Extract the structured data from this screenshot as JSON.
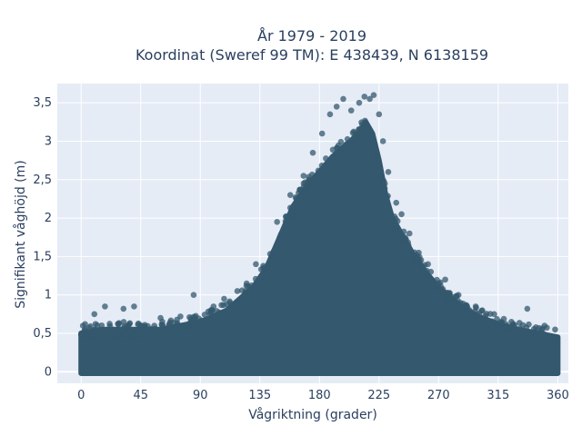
{
  "chart_data": {
    "type": "scatter",
    "title_line1": "År 1979 - 2019",
    "title_line2": "Koordinat (Sweref 99 TM): E 438439, N 6138159",
    "xlabel": "Vågriktning (grader)",
    "ylabel": "Signifikant våghöjd (m)",
    "xlim": [
      -18,
      368
    ],
    "ylim": [
      -0.15,
      3.75
    ],
    "grid": true,
    "legend": "none",
    "marker_color": "#34586e",
    "plot_bg": "#e5ecf6",
    "x_ticks": [
      {
        "value": 0,
        "label": "0"
      },
      {
        "value": 45,
        "label": "45"
      },
      {
        "value": 90,
        "label": "90"
      },
      {
        "value": 135,
        "label": "135"
      },
      {
        "value": 180,
        "label": "180"
      },
      {
        "value": 225,
        "label": "225"
      },
      {
        "value": 270,
        "label": "270"
      },
      {
        "value": 315,
        "label": "315"
      },
      {
        "value": 360,
        "label": "360"
      }
    ],
    "y_ticks": [
      {
        "value": 0,
        "label": "0"
      },
      {
        "value": 0.5,
        "label": "0,5"
      },
      {
        "value": 1,
        "label": "1"
      },
      {
        "value": 1.5,
        "label": "1,5"
      },
      {
        "value": 2,
        "label": "2"
      },
      {
        "value": 2.5,
        "label": "2,5"
      },
      {
        "value": 3,
        "label": "3"
      },
      {
        "value": 3.5,
        "label": "3,5"
      }
    ],
    "envelope": [
      [
        0,
        0.5
      ],
      [
        15,
        0.55
      ],
      [
        30,
        0.55
      ],
      [
        45,
        0.55
      ],
      [
        60,
        0.55
      ],
      [
        75,
        0.6
      ],
      [
        90,
        0.65
      ],
      [
        100,
        0.72
      ],
      [
        110,
        0.8
      ],
      [
        120,
        0.95
      ],
      [
        130,
        1.1
      ],
      [
        140,
        1.35
      ],
      [
        150,
        1.75
      ],
      [
        160,
        2.15
      ],
      [
        170,
        2.4
      ],
      [
        180,
        2.6
      ],
      [
        190,
        2.8
      ],
      [
        200,
        2.95
      ],
      [
        210,
        3.1
      ],
      [
        215,
        3.25
      ],
      [
        220,
        3.1
      ],
      [
        225,
        2.75
      ],
      [
        230,
        2.3
      ],
      [
        235,
        2.0
      ],
      [
        240,
        1.85
      ],
      [
        250,
        1.55
      ],
      [
        260,
        1.3
      ],
      [
        270,
        1.1
      ],
      [
        280,
        0.95
      ],
      [
        290,
        0.82
      ],
      [
        300,
        0.72
      ],
      [
        315,
        0.62
      ],
      [
        330,
        0.55
      ],
      [
        345,
        0.5
      ],
      [
        360,
        0.45
      ]
    ],
    "outliers": [
      {
        "x": 3,
        "y": 0.62
      },
      {
        "x": 10,
        "y": 0.75
      },
      {
        "x": 18,
        "y": 0.85
      },
      {
        "x": 32,
        "y": 0.82
      },
      {
        "x": 40,
        "y": 0.85
      },
      {
        "x": 60,
        "y": 0.7
      },
      {
        "x": 75,
        "y": 0.72
      },
      {
        "x": 85,
        "y": 1.0
      },
      {
        "x": 100,
        "y": 0.85
      },
      {
        "x": 108,
        "y": 0.95
      },
      {
        "x": 118,
        "y": 1.05
      },
      {
        "x": 125,
        "y": 1.15
      },
      {
        "x": 132,
        "y": 1.4
      },
      {
        "x": 148,
        "y": 1.95
      },
      {
        "x": 158,
        "y": 2.3
      },
      {
        "x": 168,
        "y": 2.55
      },
      {
        "x": 175,
        "y": 2.85
      },
      {
        "x": 182,
        "y": 3.1
      },
      {
        "x": 188,
        "y": 3.35
      },
      {
        "x": 193,
        "y": 3.45
      },
      {
        "x": 198,
        "y": 3.55
      },
      {
        "x": 204,
        "y": 3.4
      },
      {
        "x": 210,
        "y": 3.5
      },
      {
        "x": 214,
        "y": 3.58
      },
      {
        "x": 218,
        "y": 3.55
      },
      {
        "x": 221,
        "y": 3.6
      },
      {
        "x": 225,
        "y": 3.35
      },
      {
        "x": 228,
        "y": 3.0
      },
      {
        "x": 232,
        "y": 2.6
      },
      {
        "x": 238,
        "y": 2.2
      },
      {
        "x": 242,
        "y": 2.05
      },
      {
        "x": 248,
        "y": 1.8
      },
      {
        "x": 255,
        "y": 1.55
      },
      {
        "x": 262,
        "y": 1.4
      },
      {
        "x": 275,
        "y": 1.2
      },
      {
        "x": 285,
        "y": 1.0
      },
      {
        "x": 298,
        "y": 0.85
      },
      {
        "x": 312,
        "y": 0.75
      },
      {
        "x": 325,
        "y": 0.65
      },
      {
        "x": 337,
        "y": 0.82
      },
      {
        "x": 350,
        "y": 0.6
      },
      {
        "x": 358,
        "y": 0.55
      }
    ]
  }
}
